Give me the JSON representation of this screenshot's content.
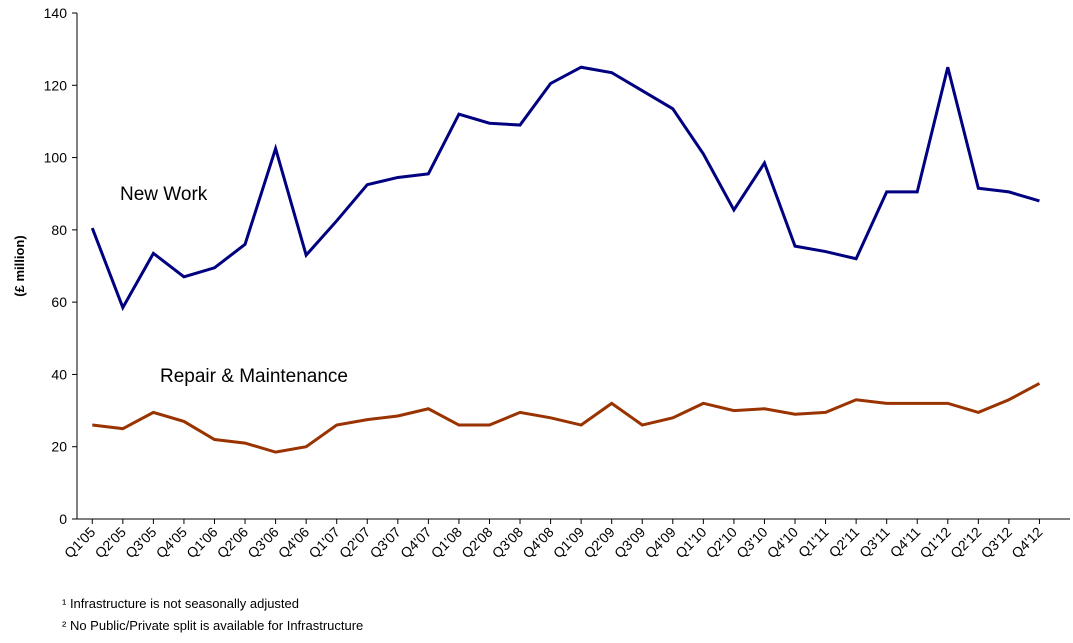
{
  "chart_data": {
    "type": "line",
    "y_label": "(£ million)",
    "categories": [
      "Q1'05",
      "Q2'05",
      "Q3'05",
      "Q4'05",
      "Q1'06",
      "Q2'06",
      "Q3'06",
      "Q4'06",
      "Q1'07",
      "Q2'07",
      "Q3'07",
      "Q4'07",
      "Q1'08",
      "Q2'08",
      "Q3'08",
      "Q4'08",
      "Q1'09",
      "Q2'09",
      "Q3'09",
      "Q4'09",
      "Q1'10",
      "Q2'10",
      "Q3'10",
      "Q4'10",
      "Q1'11",
      "Q2'11",
      "Q3'11",
      "Q4'11",
      "Q1'12",
      "Q2'12",
      "Q3'12",
      "Q4'12"
    ],
    "series": [
      {
        "name": "New Work",
        "color": "#000080",
        "values": [
          80.5,
          58.5,
          73.5,
          67,
          69.5,
          76,
          102.5,
          73,
          82.5,
          92.5,
          94.5,
          95.5,
          112,
          109.5,
          109,
          120.5,
          125,
          123.5,
          118.5,
          113.5,
          101,
          85.5,
          98.5,
          75.5,
          74,
          72,
          90.5,
          90.5,
          125,
          91.5,
          90.5,
          88
        ]
      },
      {
        "name": "Repair & Maintenance",
        "color": "#993300",
        "values": [
          26,
          25,
          29.5,
          27,
          22,
          21,
          18.5,
          20,
          26,
          27.5,
          28.5,
          30.5,
          26,
          26,
          29.5,
          28,
          26,
          32,
          26,
          28,
          32,
          30,
          30.5,
          29,
          29.5,
          33,
          32,
          32,
          32,
          29.5,
          33,
          37.5
        ]
      }
    ],
    "ylim": [
      0,
      140
    ],
    "yticks": [
      0,
      20,
      40,
      60,
      80,
      100,
      120,
      140
    ],
    "footnotes": [
      "¹ Infrastructure is not seasonally adjusted",
      "² No Public/Private split is available for Infrastructure"
    ]
  }
}
